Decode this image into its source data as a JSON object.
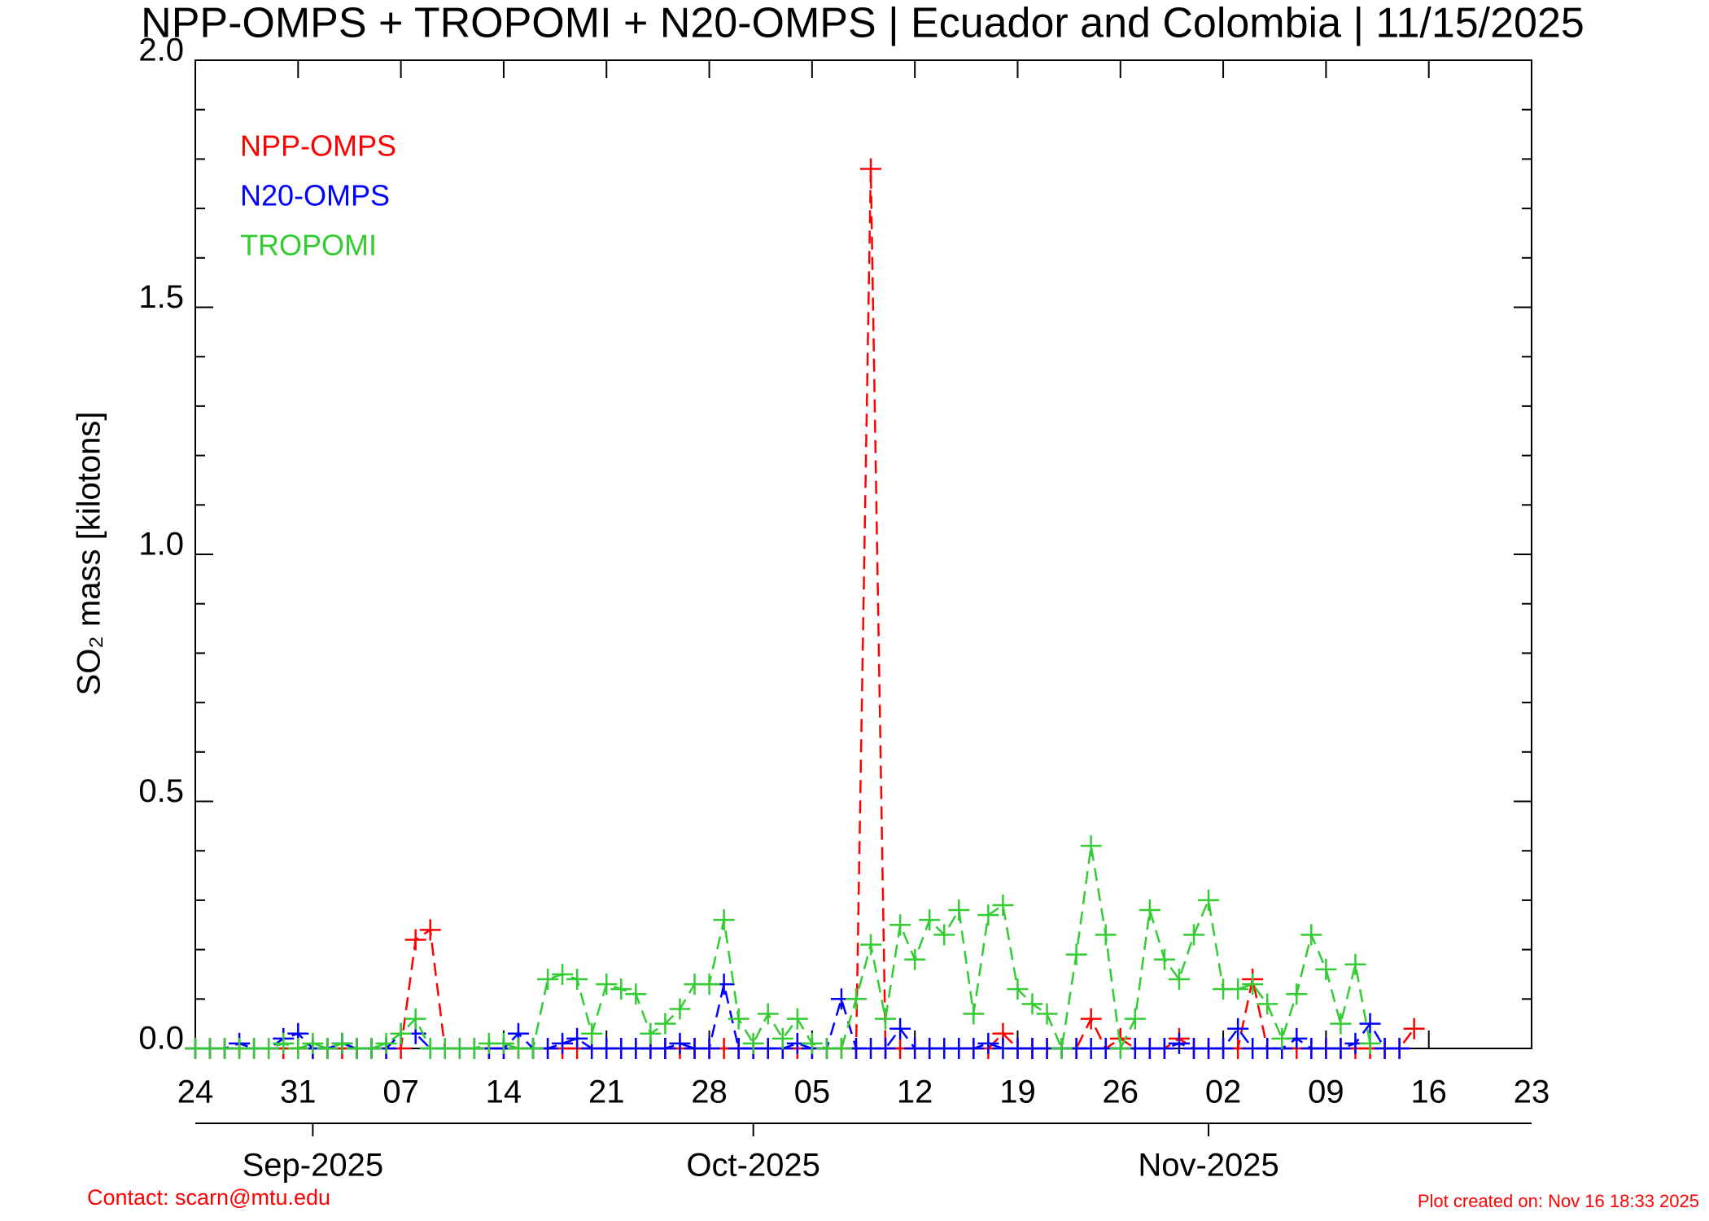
{
  "chart_data": {
    "type": "line",
    "title": "NPP-OMPS + TROPOMI + N20-OMPS | Ecuador and Colombia | 11/15/2025",
    "y_label": "SO₂ mass [kilotons]",
    "x": [
      "2025-08-24",
      "2025-08-25",
      "2025-08-26",
      "2025-08-27",
      "2025-08-28",
      "2025-08-29",
      "2025-08-30",
      "2025-08-31",
      "2025-09-01",
      "2025-09-02",
      "2025-09-03",
      "2025-09-04",
      "2025-09-05",
      "2025-09-06",
      "2025-09-07",
      "2025-09-08",
      "2025-09-09",
      "2025-09-10",
      "2025-09-11",
      "2025-09-12",
      "2025-09-13",
      "2025-09-14",
      "2025-09-15",
      "2025-09-16",
      "2025-09-17",
      "2025-09-18",
      "2025-09-19",
      "2025-09-20",
      "2025-09-21",
      "2025-09-22",
      "2025-09-23",
      "2025-09-24",
      "2025-09-25",
      "2025-09-26",
      "2025-09-27",
      "2025-09-28",
      "2025-09-29",
      "2025-09-30",
      "2025-10-01",
      "2025-10-02",
      "2025-10-03",
      "2025-10-04",
      "2025-10-05",
      "2025-10-06",
      "2025-10-07",
      "2025-10-08",
      "2025-10-09",
      "2025-10-10",
      "2025-10-11",
      "2025-10-12",
      "2025-10-13",
      "2025-10-14",
      "2025-10-15",
      "2025-10-16",
      "2025-10-17",
      "2025-10-18",
      "2025-10-19",
      "2025-10-20",
      "2025-10-21",
      "2025-10-22",
      "2025-10-23",
      "2025-10-24",
      "2025-10-25",
      "2025-10-26",
      "2025-10-27",
      "2025-10-28",
      "2025-10-29",
      "2025-10-30",
      "2025-10-31",
      "2025-11-01",
      "2025-11-02",
      "2025-11-03",
      "2025-11-04",
      "2025-11-05",
      "2025-11-06",
      "2025-11-07",
      "2025-11-08",
      "2025-11-09",
      "2025-11-10",
      "2025-11-11",
      "2025-11-12",
      "2025-11-13",
      "2025-11-14",
      "2025-11-15"
    ],
    "series": [
      {
        "name": "NPP-OMPS",
        "color": "#ff0000",
        "values": [
          0,
          0,
          0,
          0,
          0,
          0,
          0,
          0,
          0,
          0,
          0,
          0,
          0,
          0,
          0,
          0.22,
          0.24,
          0,
          0,
          0,
          0,
          0,
          0,
          0,
          0,
          0,
          0,
          0,
          0,
          0,
          0,
          0,
          0,
          0,
          0,
          0,
          0,
          0,
          0,
          0,
          0,
          0,
          0,
          0,
          0,
          0,
          1.78,
          0,
          0,
          0,
          0,
          0,
          0,
          0,
          0,
          0.03,
          0,
          0,
          0,
          0,
          0,
          0.06,
          0,
          0.02,
          0,
          0,
          0,
          0.02,
          0,
          0,
          0,
          0,
          0.14,
          0,
          0,
          0,
          0,
          0,
          0,
          0,
          0,
          0,
          0,
          0.04
        ]
      },
      {
        "name": "N20-OMPS",
        "color": "#0000ff",
        "values": [
          0,
          0,
          0,
          0.01,
          0,
          0,
          0.02,
          0.03,
          0,
          0,
          0.01,
          0,
          0,
          0,
          0.03,
          0.03,
          0,
          0,
          0,
          0,
          0,
          0,
          0.03,
          0,
          0,
          0.01,
          0.02,
          0,
          0,
          0,
          0,
          0,
          0,
          0.01,
          0,
          0,
          0.13,
          0,
          0,
          0,
          0,
          0.01,
          0,
          0,
          0.1,
          0,
          0,
          0,
          0.04,
          0,
          0,
          0,
          0,
          0,
          0.01,
          0,
          0,
          0,
          0,
          0,
          0,
          0,
          0,
          0,
          0,
          0,
          0,
          0.01,
          0,
          0,
          0,
          0.04,
          0,
          0,
          0,
          0.02,
          0,
          0,
          0,
          0.01,
          0.05,
          0,
          0,
          null
        ]
      },
      {
        "name": "TROPOMI",
        "color": "#33cc33",
        "values": [
          0,
          0,
          0,
          0,
          0,
          0,
          0.01,
          0,
          0.01,
          0,
          0.01,
          0,
          0,
          0.01,
          0.03,
          0.06,
          0,
          0,
          0,
          0,
          0.01,
          0.01,
          0,
          0,
          0.14,
          0.15,
          0.14,
          0.03,
          0.13,
          0.12,
          0.11,
          0.03,
          0.05,
          0.08,
          0.13,
          0.13,
          0.26,
          0.06,
          0.01,
          0.07,
          0.02,
          0.06,
          0.01,
          0,
          0,
          0.1,
          0.21,
          0.06,
          0.25,
          0.18,
          0.26,
          0.23,
          0.28,
          0.07,
          0.27,
          0.29,
          0.12,
          0.09,
          0.07,
          0,
          0.19,
          0.41,
          0.23,
          0,
          0.06,
          0.28,
          0.18,
          0.14,
          0.23,
          0.3,
          0.12,
          0.12,
          0.13,
          0.09,
          0.02,
          0.11,
          0.23,
          0.16,
          0.05,
          0.17,
          0.01,
          null,
          null,
          null
        ]
      }
    ],
    "ylim": [
      0,
      2
    ],
    "yticks": [
      {
        "value": 0,
        "label": "0.0"
      },
      0.5,
      {
        "value": 1,
        "label": "1.0"
      },
      1.5,
      {
        "value": 2,
        "label": "2.0"
      }
    ],
    "yminorticks": [
      0.1,
      0.2,
      0.3,
      0.4,
      0.6,
      0.7,
      0.8,
      0.9,
      1.1,
      1.2,
      1.3,
      1.4,
      1.6,
      1.7,
      1.8,
      1.9
    ],
    "xlim": [
      "2025-08-24",
      "2025-11-23"
    ],
    "xticks": [
      {
        "value": "2025-08-24",
        "label": "24"
      },
      {
        "value": "2025-08-31",
        "label": "31"
      },
      {
        "value": "2025-09-07",
        "label": "07"
      },
      {
        "value": "2025-09-14",
        "label": "14"
      },
      {
        "value": "2025-09-21",
        "label": "21"
      },
      {
        "value": "2025-09-28",
        "label": "28"
      },
      {
        "value": "2025-10-05",
        "label": "05"
      },
      {
        "value": "2025-10-12",
        "label": "12"
      },
      {
        "value": "2025-10-19",
        "label": "19"
      },
      {
        "value": "2025-10-26",
        "label": "26"
      },
      {
        "value": "2025-11-02",
        "label": "02"
      },
      {
        "value": "2025-11-09",
        "label": "09"
      },
      {
        "value": "2025-11-16",
        "label": "16"
      },
      {
        "value": "2025-11-23",
        "label": "23"
      }
    ],
    "month_ticks": [
      {
        "value": "2025-09-01",
        "label": "Sep-2025"
      },
      {
        "value": "2025-10-01",
        "label": "Oct-2025"
      },
      {
        "value": "2025-11-01",
        "label": "Nov-2025"
      }
    ],
    "contact": "Contact: scarn@mtu.edu",
    "created": "Plot created on: Nov 16 18:33 2025"
  }
}
